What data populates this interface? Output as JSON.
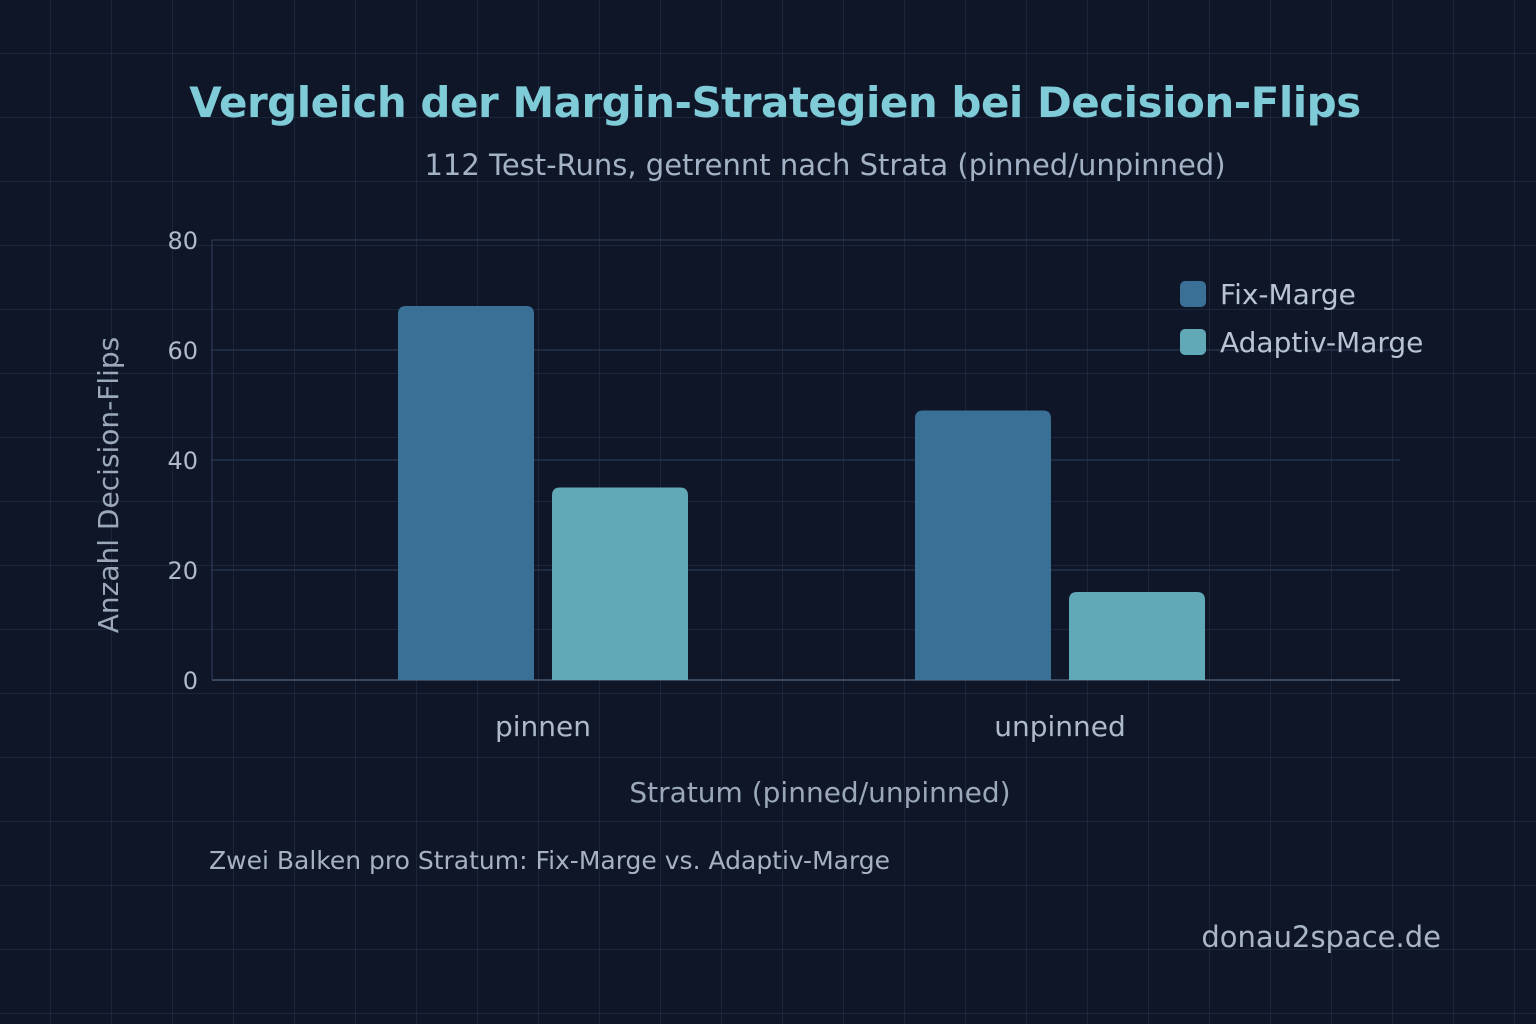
{
  "header": {
    "title": "Vergleich der Margin-Strategien bei Decision-Flips",
    "subtitle": "112 Test-Runs, getrennt nach Strata (pinned/unpinned)"
  },
  "footer": {
    "note": "Zwei Balken pro Stratum: Fix-Marge vs. Adaptiv-Marge",
    "credit": "donau2space.de"
  },
  "colors": {
    "background": "#0e1628",
    "title": "#7fcbd8",
    "fix": "#3a6f96",
    "adaptiv": "#62a9b8"
  },
  "chart_data": {
    "type": "bar",
    "title": "Vergleich der Margin-Strategien bei Decision-Flips",
    "subtitle": "112 Test-Runs, getrennt nach Strata (pinned/unpinned)",
    "xlabel": "Stratum (pinned/unpinned)",
    "ylabel": "Anzahl Decision-Flips",
    "categories": [
      "pinnen",
      "unpinned"
    ],
    "series": [
      {
        "name": "Fix-Marge",
        "color": "#3a6f96",
        "values": [
          68,
          49
        ]
      },
      {
        "name": "Adaptiv-Marge",
        "color": "#62a9b8",
        "values": [
          35,
          16
        ]
      }
    ],
    "ylim": [
      0,
      80
    ],
    "yticks": [
      0,
      20,
      40,
      60,
      80
    ],
    "grid": true,
    "legend_position": "top-right"
  }
}
